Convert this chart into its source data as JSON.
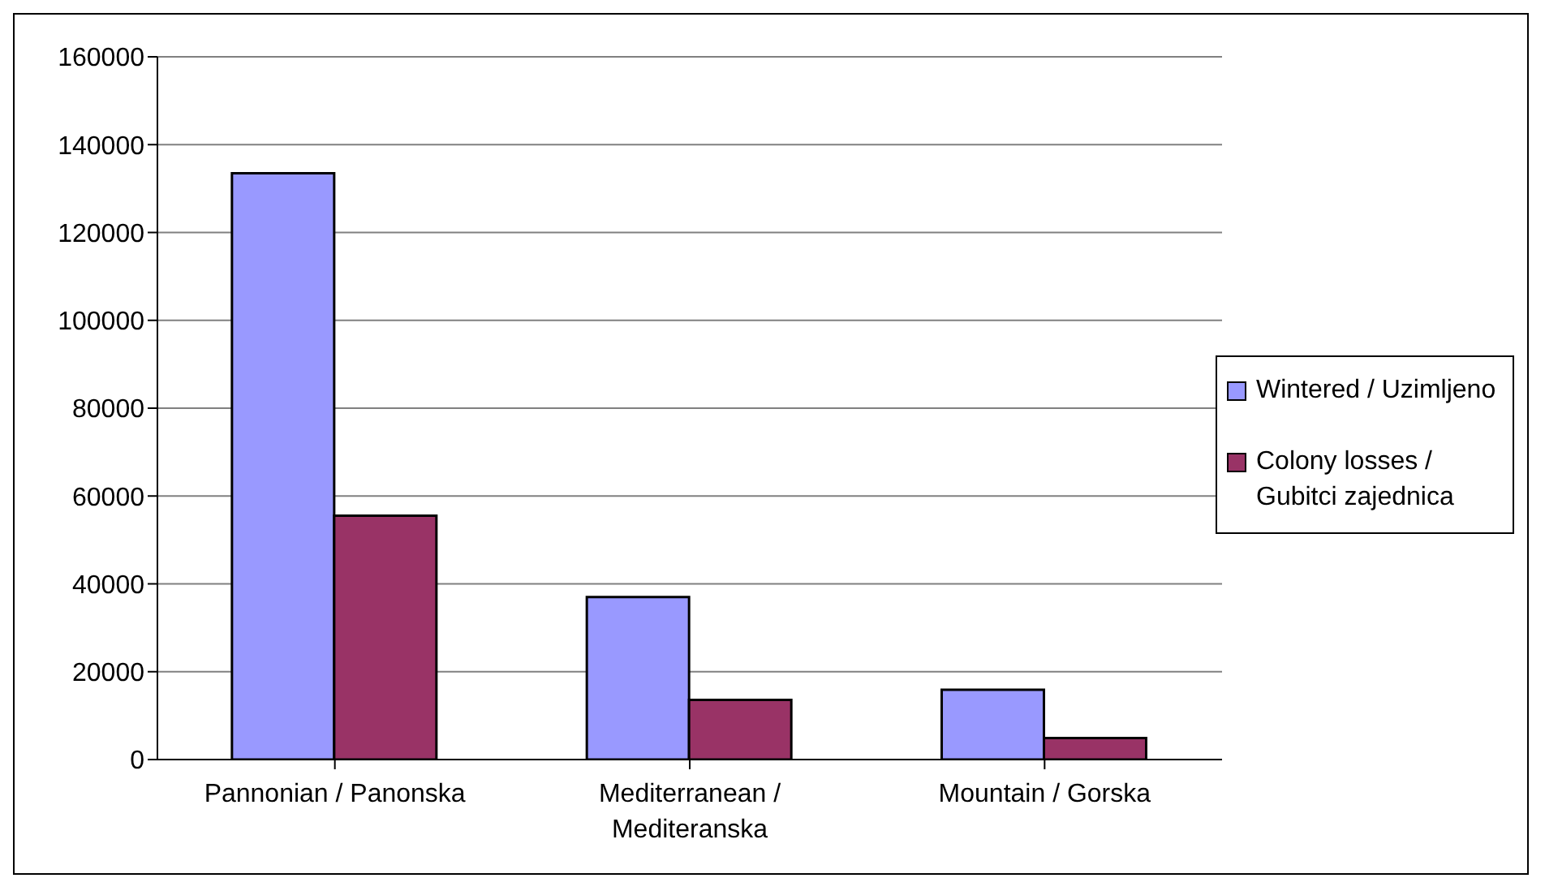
{
  "chart_data": {
    "type": "bar",
    "categories": [
      "Pannonian / Panonska",
      "Mediterranean / Mediteranska",
      "Mountain / Gorska"
    ],
    "series": [
      {
        "name": "Wintered / Uzimljeno",
        "color": "#9999ff",
        "values": [
          133500,
          37000,
          15900
        ]
      },
      {
        "name": "Colony losses / Gubitci zajednica",
        "color": "#993366",
        "values": [
          55500,
          13600,
          4900
        ]
      }
    ],
    "ylim": [
      0,
      160000
    ],
    "yticks": [
      0,
      20000,
      40000,
      60000,
      80000,
      100000,
      120000,
      140000,
      160000
    ],
    "grid": "y",
    "legend": "right"
  }
}
